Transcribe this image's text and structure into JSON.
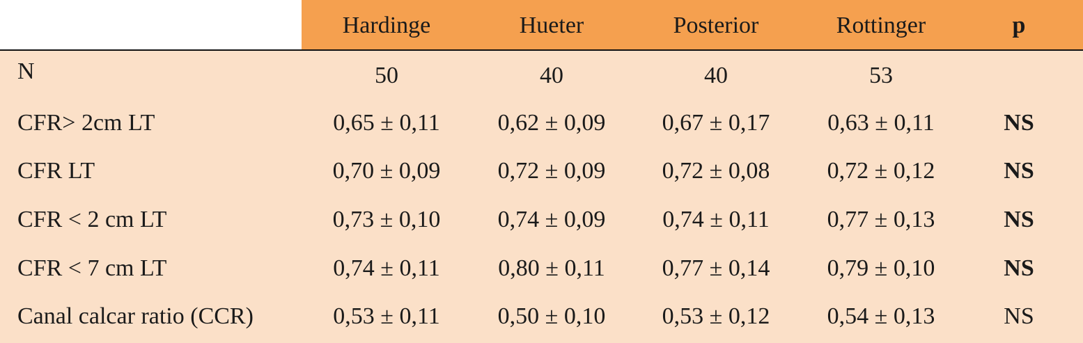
{
  "table": {
    "columns": [
      "Hardinge",
      "Hueter",
      "Posterior",
      "Rottinger",
      "p"
    ],
    "rows": [
      {
        "label": "N",
        "values": [
          "50",
          "40",
          "40",
          "53"
        ]
      },
      {
        "label": "CFR> 2cm LT",
        "values": [
          "0,65 ± 0,11",
          "0,62 ± 0,09",
          "0,67 ± 0,17",
          "0,63 ± 0,11"
        ],
        "p": "NS",
        "p_bold": true
      },
      {
        "label": "CFR LT",
        "values": [
          "0,70 ± 0,09",
          "0,72 ± 0,09",
          "0,72 ± 0,08",
          "0,72 ± 0,12"
        ],
        "p": "NS",
        "p_bold": true
      },
      {
        "label": "CFR < 2 cm LT",
        "values": [
          "0,73 ± 0,10",
          "0,74 ± 0,09",
          "0,74 ± 0,11",
          "0,77 ± 0,13"
        ],
        "p": "NS",
        "p_bold": true
      },
      {
        "label": "CFR < 7 cm LT",
        "values": [
          "0,74 ± 0,11",
          "0,80 ± 0,11",
          "0,77 ± 0,14",
          "0,79 ± 0,10"
        ],
        "p": "NS",
        "p_bold": true
      },
      {
        "label": "Canal calcar ratio (CCR)",
        "values": [
          "0,53 ± 0,11",
          "0,50 ± 0,10",
          "0,53 ± 0,12",
          "0,54 ± 0,13"
        ],
        "p": "NS",
        "p_bold": false
      }
    ]
  }
}
